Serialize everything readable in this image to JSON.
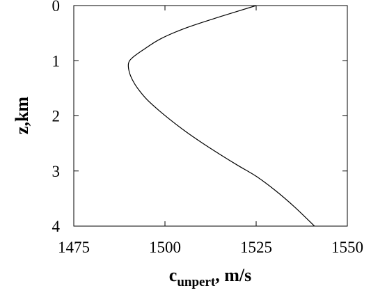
{
  "chart_data": {
    "type": "line",
    "title": "",
    "xlabel": "c",
    "xlabel_subscript": "unpert",
    "xlabel_suffix": ", m/s",
    "ylabel": "z,km",
    "xlim": [
      1475,
      1550
    ],
    "ylim": [
      0,
      4
    ],
    "y_inverted": true,
    "xticks": [
      "1475",
      "1500",
      "1525",
      "1550"
    ],
    "yticks": [
      "0",
      "1",
      "2",
      "3",
      "4"
    ],
    "grid": false,
    "legend": "none",
    "series": [
      {
        "x": [
          1525.0,
          1515.2,
          1506.0,
          1498.9,
          1494.1,
          1491.0,
          1490.0,
          1490.2,
          1491.1,
          1492.5,
          1495.0,
          1498.3,
          1502.0,
          1506.0,
          1510.4,
          1515.1,
          1520.0,
          1525.1,
          1530.2,
          1535.5,
          1541.0
        ],
        "y": [
          0.0,
          0.2,
          0.4,
          0.6,
          0.8,
          0.95,
          1.05,
          1.2,
          1.35,
          1.5,
          1.7,
          1.9,
          2.1,
          2.3,
          2.5,
          2.7,
          2.9,
          3.1,
          3.35,
          3.65,
          4.0
        ],
        "color": "#000000"
      }
    ]
  }
}
